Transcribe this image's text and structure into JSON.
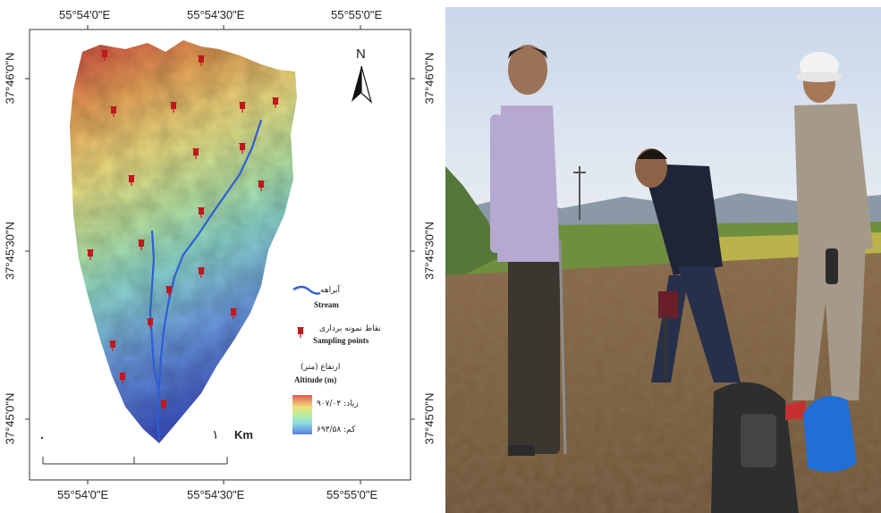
{
  "map": {
    "top_axis_labels": [
      "55°54'0\"E",
      "55°54'30\"E",
      "55°55'0\"E"
    ],
    "bottom_axis_labels": [
      "55°54'0\"E",
      "55°54'30\"E",
      "55°55'0\"E"
    ],
    "left_axis_labels": [
      "37°46'0\"N",
      "37°45'30\"N",
      "37°45'0\"N"
    ],
    "right_axis_labels": [
      "37°46'0\"N",
      "37°45'30\"N",
      "37°45'0\"N"
    ],
    "north_label": "N",
    "scale_unit": "Km",
    "scale_marker": "۱",
    "legend": {
      "stream_fa": "آبراهه",
      "stream_en": "Stream",
      "sampling_fa": "نقاط نمونه برداری",
      "sampling_en": "Sampling points",
      "altitude_fa": "ارتفاع (متر)",
      "altitude_en": "Altitude (m)",
      "high_label": "زیاد: ۹۰۷/۰۴",
      "low_label": "کم: ۶۹۳/۵۸"
    },
    "colors": {
      "stream": "#2c5fd6",
      "marker": "#c0181c",
      "high": "#e0504a",
      "mid": "#f2ef8a",
      "low": "#3a5ccc"
    },
    "sampling_point_count": 20
  },
  "photo": {
    "subject": "field-sampling-photo"
  }
}
